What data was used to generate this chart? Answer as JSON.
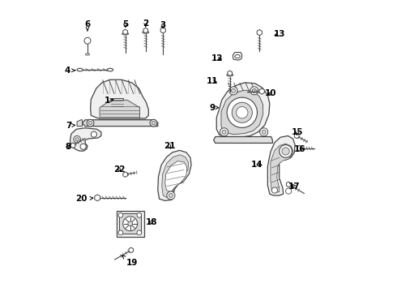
{
  "bg_color": "#ffffff",
  "line_color": "#444444",
  "fig_width": 4.9,
  "fig_height": 3.6,
  "dpi": 100,
  "label_positions": {
    "1": [
      0.185,
      0.655,
      0.21,
      0.66
    ],
    "2": [
      0.318,
      0.92,
      0.318,
      0.9
    ],
    "3": [
      0.378,
      0.915,
      0.378,
      0.895
    ],
    "4": [
      0.05,
      0.76,
      0.085,
      0.76
    ],
    "5": [
      0.248,
      0.918,
      0.248,
      0.898
    ],
    "6": [
      0.118,
      0.918,
      0.118,
      0.895
    ],
    "7": [
      0.055,
      0.57,
      0.078,
      0.572
    ],
    "8": [
      0.052,
      0.498,
      0.065,
      0.508
    ],
    "9": [
      0.548,
      0.632,
      0.572,
      0.632
    ],
    "10": [
      0.748,
      0.68,
      0.73,
      0.68
    ],
    "11": [
      0.548,
      0.722,
      0.572,
      0.72
    ],
    "12": [
      0.565,
      0.8,
      0.59,
      0.798
    ],
    "13": [
      0.778,
      0.885,
      0.752,
      0.878
    ],
    "14": [
      0.7,
      0.435,
      0.728,
      0.435
    ],
    "15": [
      0.84,
      0.548,
      0.838,
      0.535
    ],
    "16": [
      0.848,
      0.49,
      0.848,
      0.49
    ],
    "17": [
      0.83,
      0.36,
      0.82,
      0.37
    ],
    "18": [
      0.338,
      0.238,
      0.318,
      0.238
    ],
    "19": [
      0.27,
      0.098,
      0.235,
      0.125
    ],
    "20": [
      0.098,
      0.318,
      0.148,
      0.322
    ],
    "21": [
      0.4,
      0.5,
      0.408,
      0.482
    ],
    "22": [
      0.228,
      0.418,
      0.238,
      0.405
    ]
  }
}
